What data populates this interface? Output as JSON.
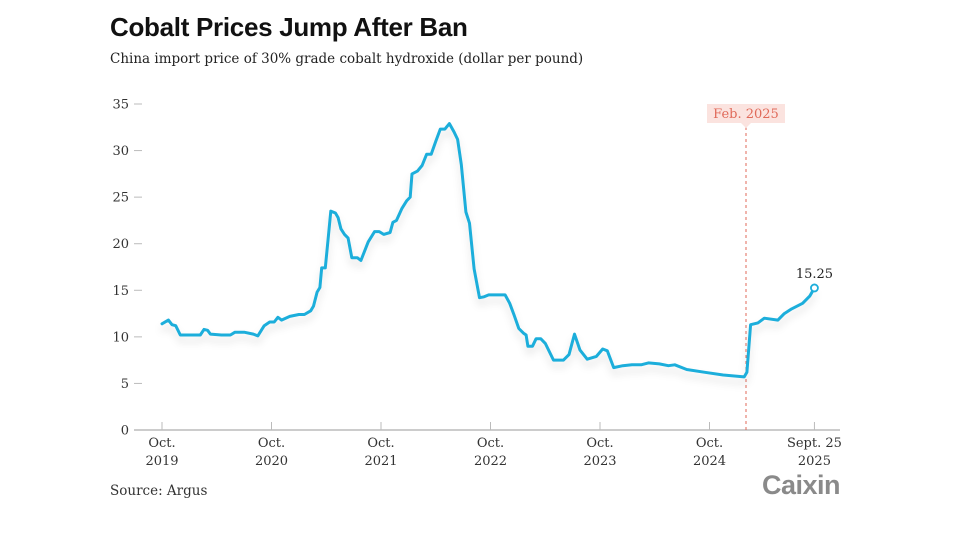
{
  "title": "Cobalt Prices Jump After Ban",
  "subtitle": "China import price of 30% grade cobalt hydroxide (dollar per pound)",
  "source": "Source: Argus",
  "logo": "Caixin",
  "colors": {
    "line": "#1eaedb",
    "annotation": "#e06a5a",
    "annotation_bg": "#fbe3df",
    "axis": "#bbbbbb",
    "text": "#333333"
  },
  "chart_data": {
    "type": "line",
    "title": "Cobalt Prices Jump After Ban",
    "subtitle": "China import price of 30% grade cobalt hydroxide (dollar per pound)",
    "xlabel": "",
    "ylabel": "dollar per pound",
    "ylim": [
      0,
      35
    ],
    "yticks": [
      0,
      5,
      10,
      15,
      20,
      25,
      30,
      35
    ],
    "xlim_months_from_oct_2019": [
      0,
      73
    ],
    "xticks": [
      {
        "month": 0,
        "line1": "Oct.",
        "line2": "2019"
      },
      {
        "month": 12,
        "line1": "Oct.",
        "line2": "2020"
      },
      {
        "month": 24,
        "line1": "Oct.",
        "line2": "2021"
      },
      {
        "month": 36,
        "line1": "Oct.",
        "line2": "2022"
      },
      {
        "month": 48,
        "line1": "Oct.",
        "line2": "2023"
      },
      {
        "month": 60,
        "line1": "Oct.",
        "line2": "2024"
      },
      {
        "month": 71.5,
        "line1": "Sept. 25",
        "line2": "2025"
      }
    ],
    "grid": false,
    "legend": "none",
    "annotations": [
      {
        "type": "vline",
        "month": 64,
        "label": "Feb. 2025"
      },
      {
        "type": "end-point",
        "label": "15.25",
        "value": 15.25
      }
    ],
    "series": [
      {
        "name": "Cobalt hydroxide import price",
        "points": [
          [
            0,
            11.4
          ],
          [
            0.7,
            11.8
          ],
          [
            1.1,
            11.3
          ],
          [
            1.5,
            11.2
          ],
          [
            2.0,
            10.2
          ],
          [
            3.0,
            10.2
          ],
          [
            4.2,
            10.2
          ],
          [
            4.6,
            10.8
          ],
          [
            5.0,
            10.7
          ],
          [
            5.3,
            10.3
          ],
          [
            6.5,
            10.2
          ],
          [
            7.5,
            10.2
          ],
          [
            8.0,
            10.5
          ],
          [
            9.0,
            10.5
          ],
          [
            10.0,
            10.3
          ],
          [
            10.5,
            10.1
          ],
          [
            11.2,
            11.2
          ],
          [
            11.8,
            11.6
          ],
          [
            12.3,
            11.6
          ],
          [
            12.7,
            12.1
          ],
          [
            13.1,
            11.8
          ],
          [
            14.0,
            12.2
          ],
          [
            15.0,
            12.4
          ],
          [
            15.6,
            12.4
          ],
          [
            16.3,
            12.8
          ],
          [
            16.6,
            13.3
          ],
          [
            17.0,
            14.8
          ],
          [
            17.3,
            15.3
          ],
          [
            17.5,
            17.4
          ],
          [
            17.9,
            17.4
          ],
          [
            18.2,
            20.5
          ],
          [
            18.5,
            23.5
          ],
          [
            19.0,
            23.3
          ],
          [
            19.3,
            22.8
          ],
          [
            19.6,
            21.6
          ],
          [
            20.0,
            21.0
          ],
          [
            20.4,
            20.6
          ],
          [
            20.8,
            18.5
          ],
          [
            21.4,
            18.5
          ],
          [
            21.8,
            18.2
          ],
          [
            22.6,
            20.2
          ],
          [
            23.3,
            21.3
          ],
          [
            23.8,
            21.3
          ],
          [
            24.3,
            21.0
          ],
          [
            25.0,
            21.2
          ],
          [
            25.3,
            22.3
          ],
          [
            25.7,
            22.5
          ],
          [
            26.3,
            23.8
          ],
          [
            26.8,
            24.6
          ],
          [
            27.2,
            25.0
          ],
          [
            27.4,
            27.5
          ],
          [
            28.0,
            27.8
          ],
          [
            28.5,
            28.4
          ],
          [
            29.0,
            29.6
          ],
          [
            29.5,
            29.6
          ],
          [
            30.0,
            31.0
          ],
          [
            30.5,
            32.3
          ],
          [
            31.0,
            32.3
          ],
          [
            31.5,
            32.9
          ],
          [
            32.0,
            32.0
          ],
          [
            32.4,
            31.2
          ],
          [
            32.8,
            28.5
          ],
          [
            33.3,
            23.4
          ],
          [
            33.7,
            22.2
          ],
          [
            34.2,
            17.3
          ],
          [
            34.8,
            14.2
          ],
          [
            35.3,
            14.3
          ],
          [
            35.8,
            14.5
          ],
          [
            37.0,
            14.5
          ],
          [
            37.6,
            14.5
          ],
          [
            38.1,
            13.6
          ],
          [
            38.6,
            12.3
          ],
          [
            39.1,
            10.9
          ],
          [
            39.6,
            10.4
          ],
          [
            39.9,
            10.2
          ],
          [
            40.1,
            9.0
          ],
          [
            40.6,
            9.0
          ],
          [
            41.0,
            9.8
          ],
          [
            41.5,
            9.8
          ],
          [
            42.0,
            9.3
          ],
          [
            42.9,
            7.5
          ],
          [
            44.0,
            7.5
          ],
          [
            44.6,
            8.1
          ],
          [
            45.2,
            10.3
          ],
          [
            45.8,
            8.6
          ],
          [
            46.6,
            7.6
          ],
          [
            47.6,
            7.9
          ],
          [
            48.3,
            8.7
          ],
          [
            48.8,
            8.5
          ],
          [
            49.5,
            6.7
          ],
          [
            50.5,
            6.9
          ],
          [
            51.5,
            7.0
          ],
          [
            52.5,
            7.0
          ],
          [
            53.3,
            7.2
          ],
          [
            54.5,
            7.1
          ],
          [
            55.5,
            6.9
          ],
          [
            56.2,
            7.0
          ],
          [
            57.5,
            6.5
          ],
          [
            59.5,
            6.2
          ],
          [
            61.5,
            5.9
          ],
          [
            63.8,
            5.7
          ],
          [
            64.1,
            6.2
          ],
          [
            64.5,
            11.3
          ],
          [
            65.3,
            11.5
          ],
          [
            66.0,
            12.0
          ],
          [
            67.5,
            11.8
          ],
          [
            68.2,
            12.5
          ],
          [
            69.0,
            13.0
          ],
          [
            70.2,
            13.6
          ],
          [
            71.0,
            14.4
          ],
          [
            71.5,
            15.25
          ]
        ]
      }
    ]
  }
}
